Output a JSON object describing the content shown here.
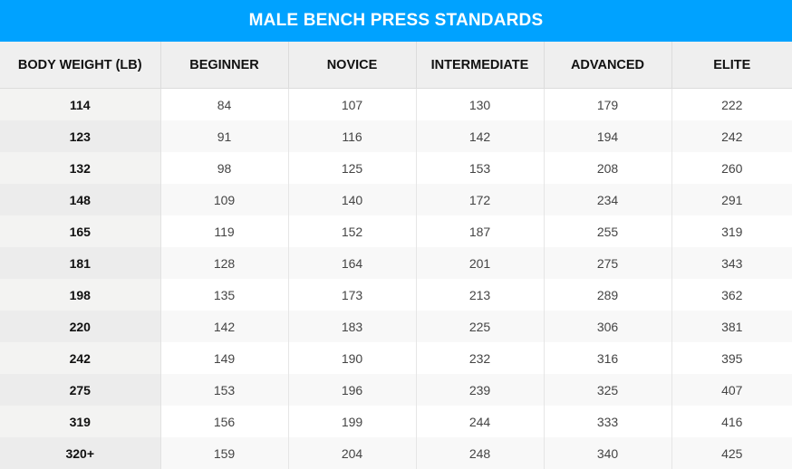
{
  "title": "MALE BENCH PRESS STANDARDS",
  "colors": {
    "header_bar": "#00a2ff"
  },
  "columns": [
    "BODY WEIGHT (LB)",
    "BEGINNER",
    "NOVICE",
    "INTERMEDIATE",
    "ADVANCED",
    "ELITE"
  ],
  "rows": [
    [
      "114",
      "84",
      "107",
      "130",
      "179",
      "222"
    ],
    [
      "123",
      "91",
      "116",
      "142",
      "194",
      "242"
    ],
    [
      "132",
      "98",
      "125",
      "153",
      "208",
      "260"
    ],
    [
      "148",
      "109",
      "140",
      "172",
      "234",
      "291"
    ],
    [
      "165",
      "119",
      "152",
      "187",
      "255",
      "319"
    ],
    [
      "181",
      "128",
      "164",
      "201",
      "275",
      "343"
    ],
    [
      "198",
      "135",
      "173",
      "213",
      "289",
      "362"
    ],
    [
      "220",
      "142",
      "183",
      "225",
      "306",
      "381"
    ],
    [
      "242",
      "149",
      "190",
      "232",
      "316",
      "395"
    ],
    [
      "275",
      "153",
      "196",
      "239",
      "325",
      "407"
    ],
    [
      "319",
      "156",
      "199",
      "244",
      "333",
      "416"
    ],
    [
      "320+",
      "159",
      "204",
      "248",
      "340",
      "425"
    ]
  ]
}
